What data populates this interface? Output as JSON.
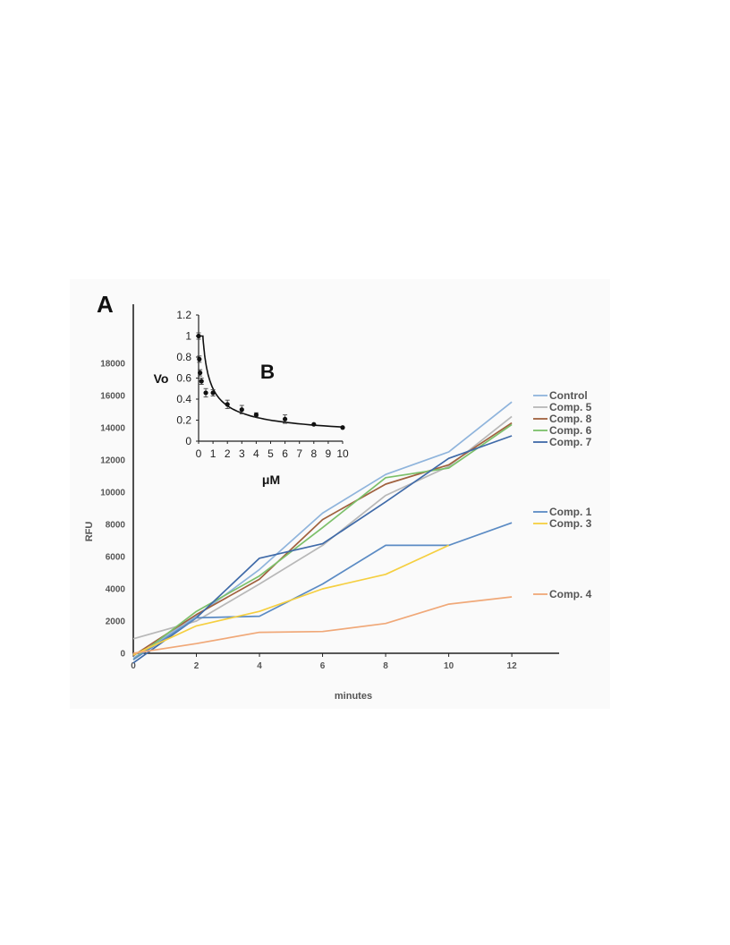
{
  "chart_data": [
    {
      "type": "line",
      "panel_label": "A",
      "xlabel": "minutes",
      "ylabel": "RFU",
      "xlim": [
        0,
        13.5
      ],
      "ylim": [
        0,
        18000
      ],
      "x_ticks": [
        "0",
        "2",
        "4",
        "6",
        "8",
        "10",
        "12"
      ],
      "y_ticks": [
        "0",
        "2000",
        "4000",
        "6000",
        "8000",
        "10000",
        "12000",
        "14000",
        "16000",
        "18000"
      ],
      "grid": false,
      "legend_position": "right",
      "x": [
        0,
        2,
        4,
        6,
        8,
        10,
        12
      ],
      "series": [
        {
          "name": "Control",
          "color": "#8fb4dc",
          "values": [
            -300,
            2300,
            5200,
            8700,
            11100,
            12500,
            15600
          ]
        },
        {
          "name": "Comp. 5",
          "color": "#b8b8b8",
          "values": [
            900,
            2000,
            4300,
            6700,
            9800,
            11600,
            14700
          ]
        },
        {
          "name": "Comp. 8",
          "color": "#a0613e",
          "values": [
            -150,
            2400,
            4600,
            8300,
            10500,
            11700,
            14300
          ]
        },
        {
          "name": "Comp. 6",
          "color": "#7cc06a",
          "values": [
            -400,
            2600,
            4800,
            7800,
            10900,
            11500,
            14200
          ]
        },
        {
          "name": "Comp. 7",
          "color": "#3f6aa8",
          "values": [
            -600,
            2200,
            5900,
            6800,
            9400,
            12100,
            13500
          ]
        },
        {
          "name": "Comp. 1",
          "color": "#5b8bc4",
          "values": [
            -400,
            2200,
            2300,
            4300,
            6700,
            6700,
            8100
          ]
        },
        {
          "name": "Comp. 3",
          "color": "#f5cf40",
          "values": [
            -100,
            1700,
            2600,
            4000,
            4900,
            6700,
            null
          ]
        },
        {
          "name": "Comp. 4",
          "color": "#f0a878",
          "values": [
            0,
            600,
            1300,
            1350,
            1850,
            3050,
            3500
          ]
        }
      ]
    },
    {
      "type": "scatter",
      "panel_label": "B",
      "xlabel": "μM",
      "ylabel": "Vo",
      "xlim": [
        0,
        10
      ],
      "ylim": [
        0,
        1.2
      ],
      "x_ticks": [
        "0",
        "1",
        "2",
        "3",
        "4",
        "5",
        "6",
        "7",
        "8",
        "9",
        "10"
      ],
      "y_ticks": [
        "0",
        "0.2",
        "0.4",
        "0.6",
        "0.8",
        "1",
        "1.2"
      ],
      "grid": false,
      "points": [
        {
          "x": 0,
          "y": 1.0,
          "err": 0.03
        },
        {
          "x": 0.05,
          "y": 0.78,
          "err": 0.03
        },
        {
          "x": 0.1,
          "y": 0.65,
          "err": 0.03
        },
        {
          "x": 0.2,
          "y": 0.57,
          "err": 0.03
        },
        {
          "x": 0.5,
          "y": 0.46,
          "err": 0.04
        },
        {
          "x": 1,
          "y": 0.46,
          "err": 0.03
        },
        {
          "x": 2,
          "y": 0.35,
          "err": 0.04
        },
        {
          "x": 3,
          "y": 0.3,
          "err": 0.04
        },
        {
          "x": 4,
          "y": 0.25,
          "err": 0.02
        },
        {
          "x": 6,
          "y": 0.21,
          "err": 0.04
        },
        {
          "x": 8,
          "y": 0.16,
          "err": 0
        },
        {
          "x": 10,
          "y": 0.13,
          "err": 0
        }
      ],
      "fit_curve": {
        "type": "power",
        "a": 0.5,
        "b": -0.57
      }
    }
  ]
}
